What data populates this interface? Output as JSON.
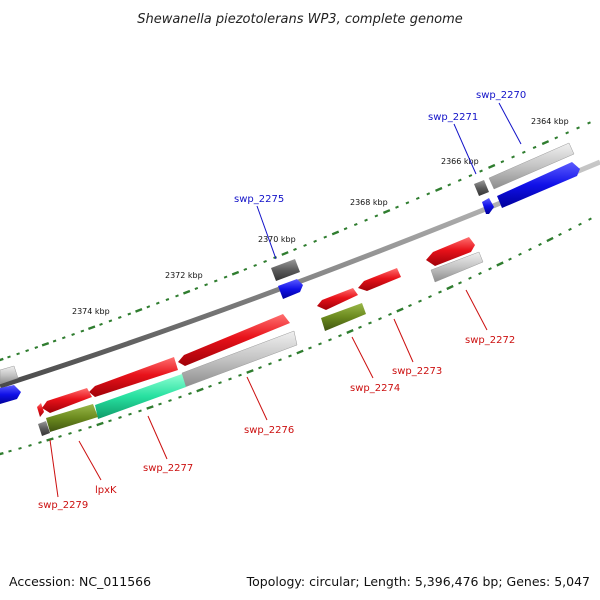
{
  "title": "Shewanella piezotolerans WP3, complete genome",
  "footer": {
    "accession": "Accession: NC_011566",
    "summary": "Topology: circular; Length: 5,396,476 bp; Genes: 5,047"
  },
  "colors": {
    "backbone": "#8a8a8a",
    "tick": "#2f7d2f",
    "forward_cds": "#e8121a",
    "reverse_cds_gray": "#c8c8c8",
    "blue_gene": "#1010e8",
    "olive_gene": "#6b8a1e",
    "teal_gene": "#27e0a0",
    "dark_gene": "#6a6a6a",
    "label_blue": "#1212c8",
    "label_red": "#cc1010"
  },
  "ticks": [
    {
      "label": "2364 kbp"
    },
    {
      "label": "2366 kbp"
    },
    {
      "label": "2368 kbp"
    },
    {
      "label": "2370 kbp"
    },
    {
      "label": "2372 kbp"
    },
    {
      "label": "2374 kbp"
    }
  ],
  "genes": [
    {
      "label": "swp_2270"
    },
    {
      "label": "swp_2271"
    },
    {
      "label": "swp_2272"
    },
    {
      "label": "swp_2273"
    },
    {
      "label": "swp_2274"
    },
    {
      "label": "swp_2275"
    },
    {
      "label": "swp_2276"
    },
    {
      "label": "swp_2277"
    },
    {
      "label": "lpxK"
    },
    {
      "label": "swp_2279"
    }
  ]
}
